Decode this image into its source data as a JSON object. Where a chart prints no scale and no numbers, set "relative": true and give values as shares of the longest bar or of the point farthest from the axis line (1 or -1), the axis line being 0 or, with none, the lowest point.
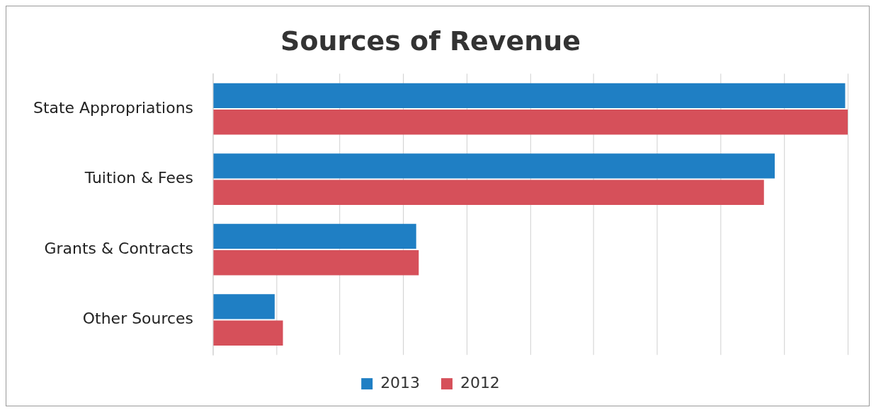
{
  "chart_data": {
    "type": "bar",
    "title": "Sources of Revenue",
    "orientation": "horizontal",
    "relative": true,
    "categories": [
      "State Appropriations",
      "Tuition & Fees",
      "Grants & Contracts",
      "Other Sources"
    ],
    "series": [
      {
        "name": "2013",
        "color": "#1f7fc4",
        "values": [
          0.996,
          0.885,
          0.32,
          0.097
        ]
      },
      {
        "name": "2012",
        "color": "#d6505a",
        "values": [
          1,
          0.868,
          0.324,
          0.11
        ]
      }
    ],
    "grid": "x",
    "legend": "bottom"
  }
}
